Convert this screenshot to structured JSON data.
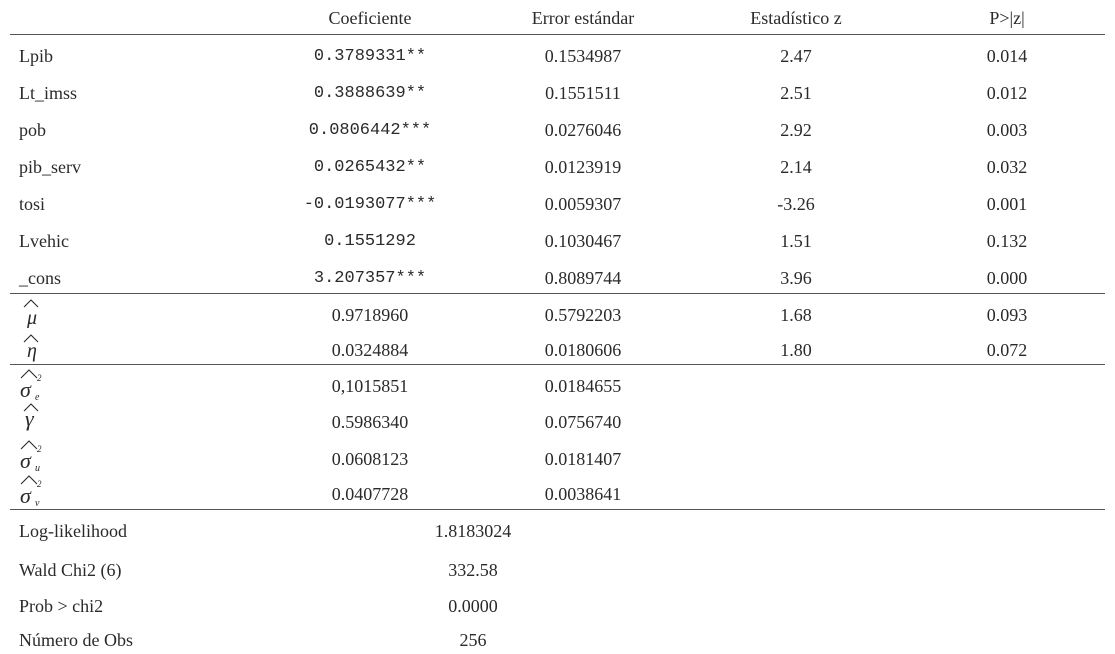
{
  "header": {
    "coef": "Coeficiente",
    "se": "Error estándar",
    "z": "Estadístico z",
    "p": "P>|z|"
  },
  "rows": [
    {
      "label": "Lpib",
      "coef": "0.3789331**",
      "se": "0.1534987",
      "z": "2.47",
      "p": "0.014"
    },
    {
      "label": "Lt_imss",
      "coef": "0.3888639**",
      "se": "0.1551511",
      "z": "2.51",
      "p": "0.012"
    },
    {
      "label": "pob",
      "coef": "0.0806442***",
      "se": "0.0276046",
      "z": "2.92",
      "p": "0.003"
    },
    {
      "label": "pib_serv",
      "coef": "0.0265432**",
      "se": "0.0123919",
      "z": "2.14",
      "p": "0.032"
    },
    {
      "label": "tosi",
      "coef": "-0.0193077***",
      "se": "0.0059307",
      "z": "-3.26",
      "p": "0.001"
    },
    {
      "label": "Lvehic",
      "coef": "0.1551292",
      "se": "0.1030467",
      "z": "1.51",
      "p": "0.132"
    },
    {
      "label": "_cons",
      "coef": "3.207357***",
      "se": "0.8089744",
      "z": "3.96",
      "p": "0.000"
    }
  ],
  "params": [
    {
      "symbol": "μ",
      "coef": "0.9718960",
      "se": "0.5792203",
      "z": "1.68",
      "p": "0.093"
    },
    {
      "symbol": "η",
      "coef": "0.0324884",
      "se": "0.0180606",
      "z": "1.80",
      "p": "0.072"
    }
  ],
  "variances": [
    {
      "symbol": "σ",
      "sub": "e",
      "sup": "2",
      "coef": "0,1015851",
      "se": "0.0184655"
    },
    {
      "symbol": "γ",
      "coef": "0.5986340",
      "se": "0.0756740"
    },
    {
      "symbol": "σ",
      "sub": "u",
      "sup": "2",
      "coef": "0.0608123",
      "se": "0.0181407"
    },
    {
      "symbol": "σ",
      "sub": "v",
      "sup": "2",
      "coef": "0.0407728",
      "se": "0.0038641"
    }
  ],
  "stats": [
    {
      "label": "Log-likelihood",
      "value": "1.8183024"
    },
    {
      "label": "Wald Chi2 (6)",
      "value": "332.58"
    },
    {
      "label": "Prob > chi2",
      "value": "0.0000"
    },
    {
      "label": "Número de Obs",
      "value": "256"
    }
  ]
}
